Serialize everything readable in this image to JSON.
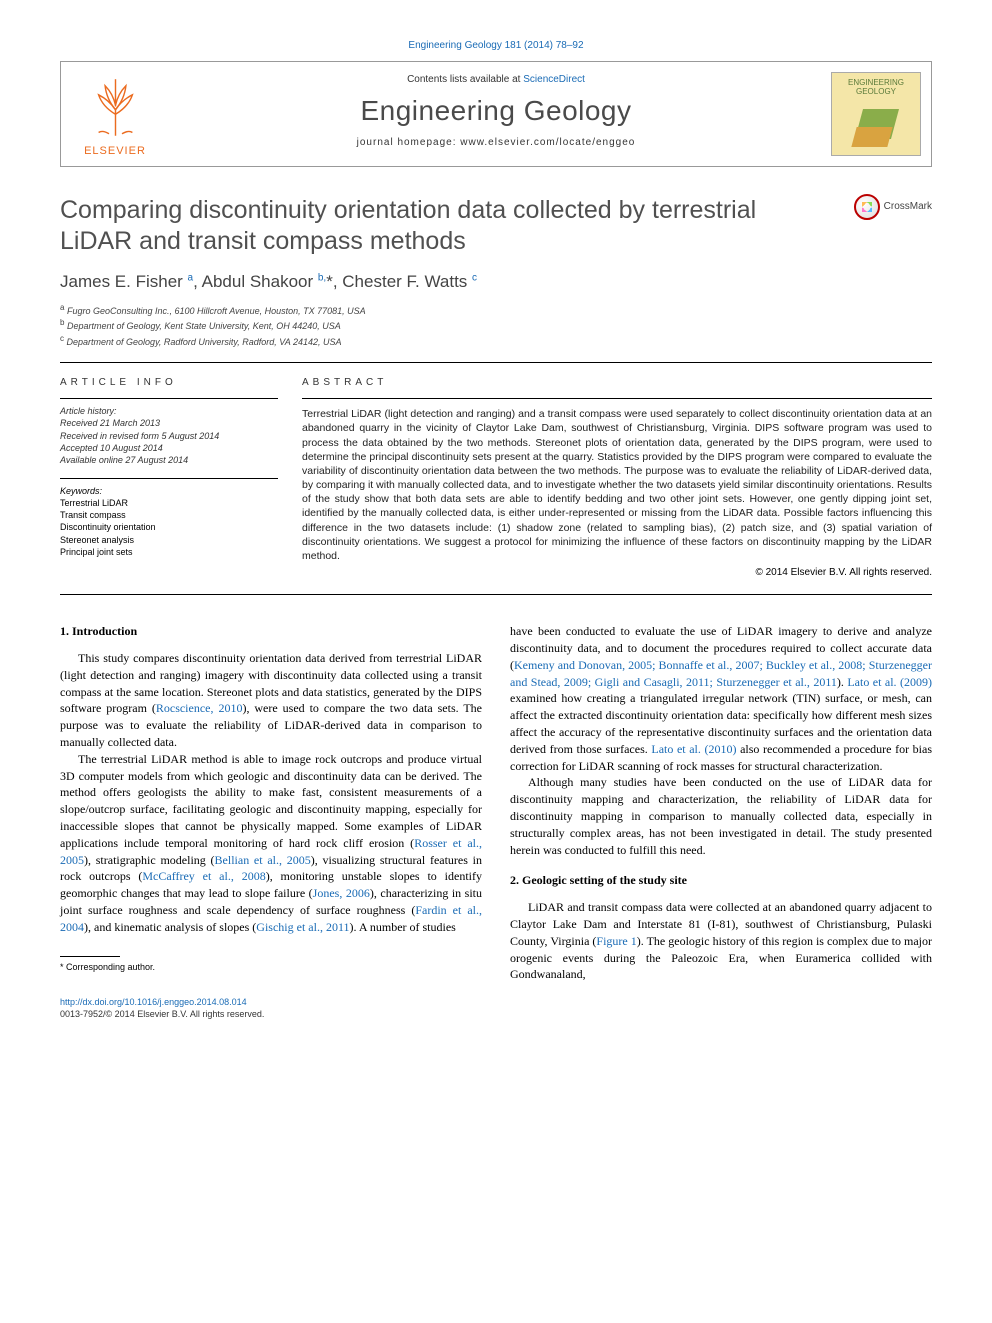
{
  "journal": {
    "citation": "Engineering Geology 181 (2014) 78–92",
    "contents_prefix": "Contents lists available at ",
    "contents_link": "ScienceDirect",
    "name": "Engineering Geology",
    "homepage_prefix": "journal homepage: ",
    "homepage": "www.elsevier.com/locate/enggeo",
    "publisher_name": "ELSEVIER",
    "cover_title_line1": "ENGINEERING",
    "cover_title_line2": "GEOLOGY",
    "crossmark_label": "CrossMark"
  },
  "article": {
    "title": "Comparing discontinuity orientation data collected by terrestrial LiDAR and transit compass methods",
    "authors_html": "James E. Fisher <sup>a</sup>, Abdul Shakoor <sup>b,</sup>*, Chester F. Watts <sup>c</sup>",
    "affiliations": {
      "a": "Fugro GeoConsulting Inc., 6100 Hillcroft Avenue, Houston, TX 77081, USA",
      "b": "Department of Geology, Kent State University, Kent, OH 44240, USA",
      "c": "Department of Geology, Radford University, Radford, VA 24142, USA"
    }
  },
  "info": {
    "section_head": "article info",
    "history_label": "Article history:",
    "received": "Received 21 March 2013",
    "revised": "Received in revised form 5 August 2014",
    "accepted": "Accepted 10 August 2014",
    "online": "Available online 27 August 2014",
    "keywords_label": "Keywords:",
    "keywords": [
      "Terrestrial LiDAR",
      "Transit compass",
      "Discontinuity orientation",
      "Stereonet analysis",
      "Principal joint sets"
    ]
  },
  "abstract": {
    "section_head": "abstract",
    "body": "Terrestrial LiDAR (light detection and ranging) and a transit compass were used separately to collect discontinuity orientation data at an abandoned quarry in the vicinity of Claytor Lake Dam, southwest of Christiansburg, Virginia. DIPS software program was used to process the data obtained by the two methods. Stereonet plots of orientation data, generated by the DIPS program, were used to determine the principal discontinuity sets present at the quarry. Statistics provided by the DIPS program were compared to evaluate the variability of discontinuity orientation data between the two methods. The purpose was to evaluate the reliability of LiDAR-derived data, by comparing it with manually collected data, and to investigate whether the two datasets yield similar discontinuity orientations. Results of the study show that both data sets are able to identify bedding and two other joint sets. However, one gently dipping joint set, identified by the manually collected data, is either under-represented or missing from the LiDAR data. Possible factors influencing this difference in the two datasets include: (1) shadow zone (related to sampling bias), (2) patch size, and (3) spatial variation of discontinuity orientations. We suggest a protocol for minimizing the influence of these factors on discontinuity mapping by the LiDAR method.",
    "copyright": "© 2014 Elsevier B.V. All rights reserved."
  },
  "sections": {
    "intro_heading": "1. Introduction",
    "intro_p1_pre": "This study compares discontinuity orientation data derived from terrestrial LiDAR (light detection and ranging) imagery with discontinuity data collected using a transit compass at the same location. Stereonet plots and data statistics, generated by the DIPS software program (",
    "intro_p1_cite1": "Rocscience, 2010",
    "intro_p1_post": "), were used to compare the two data sets. The purpose was to evaluate the reliability of LiDAR-derived data in comparison to manually collected data.",
    "intro_p2_a": "The terrestrial LiDAR method is able to image rock outcrops and produce virtual 3D computer models from which geologic and discontinuity data can be derived. The method offers geologists the ability to make fast, consistent measurements of a slope/outcrop surface, facilitating geologic and discontinuity mapping, especially for inaccessible slopes that cannot be physically mapped. Some examples of LiDAR applications include temporal monitoring of hard rock cliff erosion (",
    "intro_p2_c1": "Rosser et al., 2005",
    "intro_p2_b": "), stratigraphic modeling (",
    "intro_p2_c2": "Bellian et al., 2005",
    "intro_p2_c": "), visualizing structural features in rock outcrops (",
    "intro_p2_c3": "McCaffrey et al., 2008",
    "intro_p2_d": "), monitoring unstable slopes to identify geomorphic changes that may lead to slope failure (",
    "intro_p2_c4": "Jones, 2006",
    "intro_p2_e": "), characterizing in situ joint surface roughness and scale dependency of surface roughness (",
    "intro_p2_c5": "Fardin et al., 2004",
    "intro_p2_f": "), and kinematic analysis of slopes (",
    "intro_p2_c6": "Gischig et al., 2011",
    "intro_p2_g": "). A number of studies",
    "col2_p1_a": "have been conducted to evaluate the use of LiDAR imagery to derive and analyze discontinuity data, and to document the procedures required to collect accurate data (",
    "col2_p1_c1": "Kemeny and Donovan, 2005; Bonnaffe et al., 2007; Buckley et al., 2008; Sturzenegger and Stead, 2009; Gigli and Casagli, 2011; Sturzenegger et al., 2011",
    "col2_p1_b": "). ",
    "col2_p1_c2": "Lato et al. (2009)",
    "col2_p1_c": " examined how creating a triangulated irregular network (TIN) surface, or mesh, can affect the extracted discontinuity orientation data: specifically how different mesh sizes affect the accuracy of the representative discontinuity surfaces and the orientation data derived from those surfaces. ",
    "col2_p1_c3": "Lato et al. (2010)",
    "col2_p1_d": " also recommended a procedure for bias correction for LiDAR scanning of rock masses for structural characterization.",
    "col2_p2": "Although many studies have been conducted on the use of LiDAR data for discontinuity mapping and characterization, the reliability of LiDAR data for discontinuity mapping in comparison to manually collected data, especially in structurally complex areas, has not been investigated in detail. The study presented herein was conducted to fulfill this need.",
    "geo_heading": "2. Geologic setting of the study site",
    "geo_p1_a": "LiDAR and transit compass data were collected at an abandoned quarry adjacent to Claytor Lake Dam and Interstate 81 (I-81), southwest of Christiansburg, Pulaski County, Virginia (",
    "geo_p1_c1": "Figure 1",
    "geo_p1_b": "). The geologic history of this region is complex due to major orogenic events during the Paleozoic Era, when Euramerica collided with Gondwanaland,"
  },
  "footnote": {
    "corresponding": "* Corresponding author."
  },
  "footer": {
    "doi": "http://dx.doi.org/10.1016/j.enggeo.2014.08.014",
    "issn": "0013-7952/© 2014 Elsevier B.V. All rights reserved."
  },
  "colors": {
    "link": "#1a6bb5",
    "elsevier_orange": "#eb6b1f",
    "text": "#000000",
    "heading_gray": "#505050"
  }
}
